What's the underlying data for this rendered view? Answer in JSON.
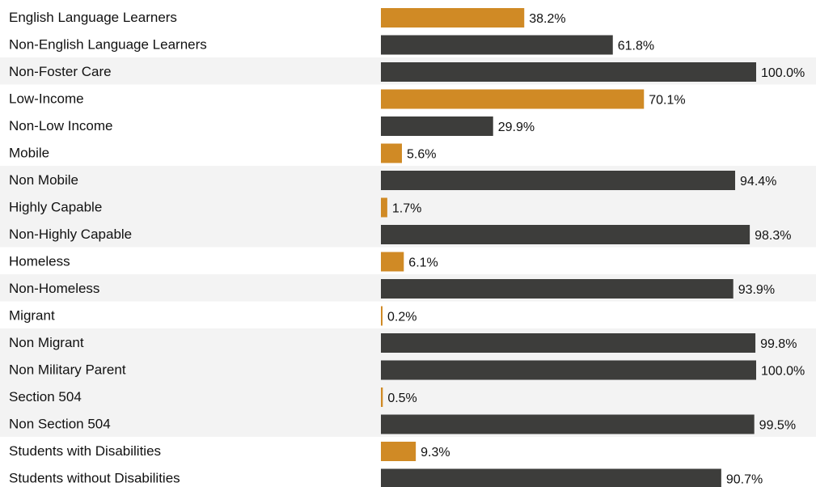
{
  "chart_data": {
    "type": "bar",
    "orientation": "horizontal",
    "title": "",
    "xlabel": "",
    "ylabel": "",
    "xlim": [
      0,
      100
    ],
    "value_suffix": "%",
    "grid": false,
    "legend": "none",
    "colors": {
      "highlight": "#d08a25",
      "base": "#3d3d3b",
      "band": "#f3f3f3"
    },
    "categories": [
      "English Language Learners",
      "Non-English Language Learners",
      "Non-Foster Care",
      "Low-Income",
      "Non-Low Income",
      "Mobile",
      "Non Mobile",
      "Highly Capable",
      "Non-Highly Capable",
      "Homeless",
      "Non-Homeless",
      "Migrant",
      "Non Migrant",
      "Non Military Parent",
      "Section 504",
      "Non Section 504",
      "Students with Disabilities",
      "Students without Disabilities"
    ],
    "values": [
      38.2,
      61.8,
      100.0,
      70.1,
      29.9,
      5.6,
      94.4,
      1.7,
      98.3,
      6.1,
      93.9,
      0.2,
      99.8,
      100.0,
      0.5,
      99.5,
      9.3,
      90.7
    ],
    "value_labels": [
      "38.2%",
      "61.8%",
      "100.0%",
      "70.1%",
      "29.9%",
      "5.6%",
      "94.4%",
      "1.7%",
      "98.3%",
      "6.1%",
      "93.9%",
      "0.2%",
      "99.8%",
      "100.0%",
      "0.5%",
      "99.5%",
      "9.3%",
      "90.7%"
    ],
    "highlighted": [
      true,
      false,
      false,
      true,
      false,
      true,
      false,
      true,
      false,
      true,
      false,
      true,
      false,
      false,
      true,
      false,
      true,
      false
    ],
    "banded_groups": [
      2,
      6,
      7,
      8,
      10,
      12,
      13,
      14,
      15
    ]
  }
}
